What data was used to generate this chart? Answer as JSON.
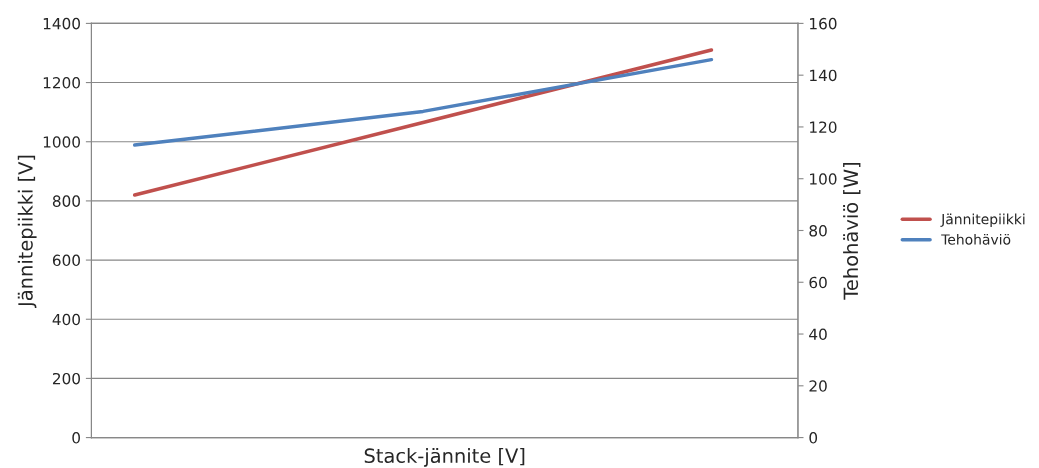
{
  "chart_data": {
    "type": "line",
    "xlabel": "Stack-jännite [V]",
    "ylabel": "Jännitepiikki [V]",
    "y2label": "Tehohäviö [W]",
    "categories": [
      null,
      null,
      null
    ],
    "series": [
      {
        "name": "Jännitepiikki",
        "color": "#c0504d",
        "values": [
          820,
          1065,
          1310
        ]
      },
      {
        "name": "Tehohäviö",
        "color": "#4f81bd",
        "values": [
          113,
          126,
          146
        ],
        "axis": "y2"
      }
    ],
    "ylim": [
      0,
      1400
    ],
    "yticks": [
      0,
      200,
      400,
      600,
      800,
      1000,
      1200,
      1400
    ],
    "y2lim": [
      0,
      160
    ],
    "y2ticks": [
      0,
      20,
      40,
      60,
      80,
      100,
      120,
      140,
      160
    ],
    "grid": "y",
    "legend": "right",
    "marker": "none",
    "line_style": "solid"
  }
}
